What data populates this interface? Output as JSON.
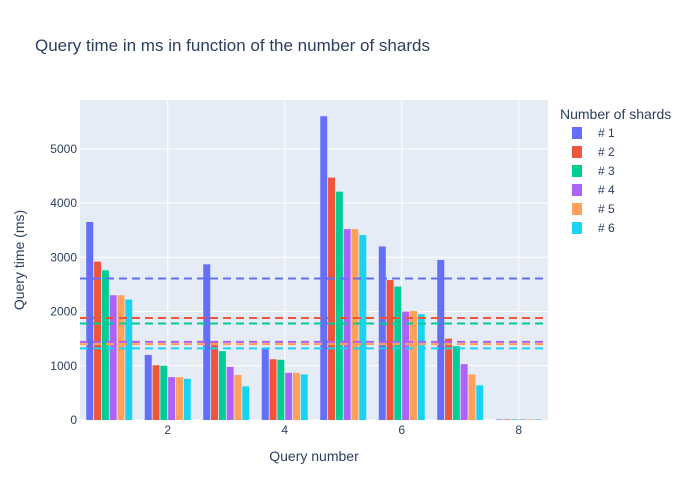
{
  "colors": {
    "background": "#ffffff",
    "plot_bg": "#e5ecf6",
    "grid": "#ffffff",
    "text": "#2a3f5f",
    "series": [
      "#636efa",
      "#EF553B",
      "#00cc96",
      "#ab63fa",
      "#FFA15A",
      "#19d3f3"
    ]
  },
  "chart_data": {
    "type": "bar",
    "title": "Query time in ms in function of the number of shards",
    "xlabel": "Query number",
    "ylabel": "Query time (ms)",
    "x": [
      1,
      2,
      3,
      4,
      5,
      6,
      7,
      8
    ],
    "xlim": [
      0.5,
      8.5
    ],
    "ylim": [
      0,
      5900
    ],
    "xticks": [
      2,
      4,
      6,
      8
    ],
    "yticks": [
      0,
      1000,
      2000,
      3000,
      4000,
      5000
    ],
    "grid": true,
    "legend_title": "Number of shards",
    "legend_position": "right",
    "series": [
      {
        "name": "# 1",
        "values": [
          3650,
          1200,
          2870,
          1330,
          5600,
          3200,
          2950,
          10
        ],
        "mean": 2610
      },
      {
        "name": "# 2",
        "values": [
          2920,
          1010,
          1440,
          1120,
          4470,
          2580,
          1500,
          10
        ],
        "mean": 1880
      },
      {
        "name": "# 3",
        "values": [
          2760,
          1000,
          1270,
          1110,
          4210,
          2460,
          1360,
          10
        ],
        "mean": 1780
      },
      {
        "name": "# 4",
        "values": [
          2300,
          790,
          980,
          870,
          3520,
          2000,
          1030,
          10
        ],
        "mean": 1440
      },
      {
        "name": "# 5",
        "values": [
          2300,
          790,
          830,
          870,
          3520,
          2010,
          840,
          10
        ],
        "mean": 1400
      },
      {
        "name": "# 6",
        "values": [
          2220,
          760,
          620,
          840,
          3410,
          1950,
          640,
          10
        ],
        "mean": 1320
      }
    ]
  }
}
